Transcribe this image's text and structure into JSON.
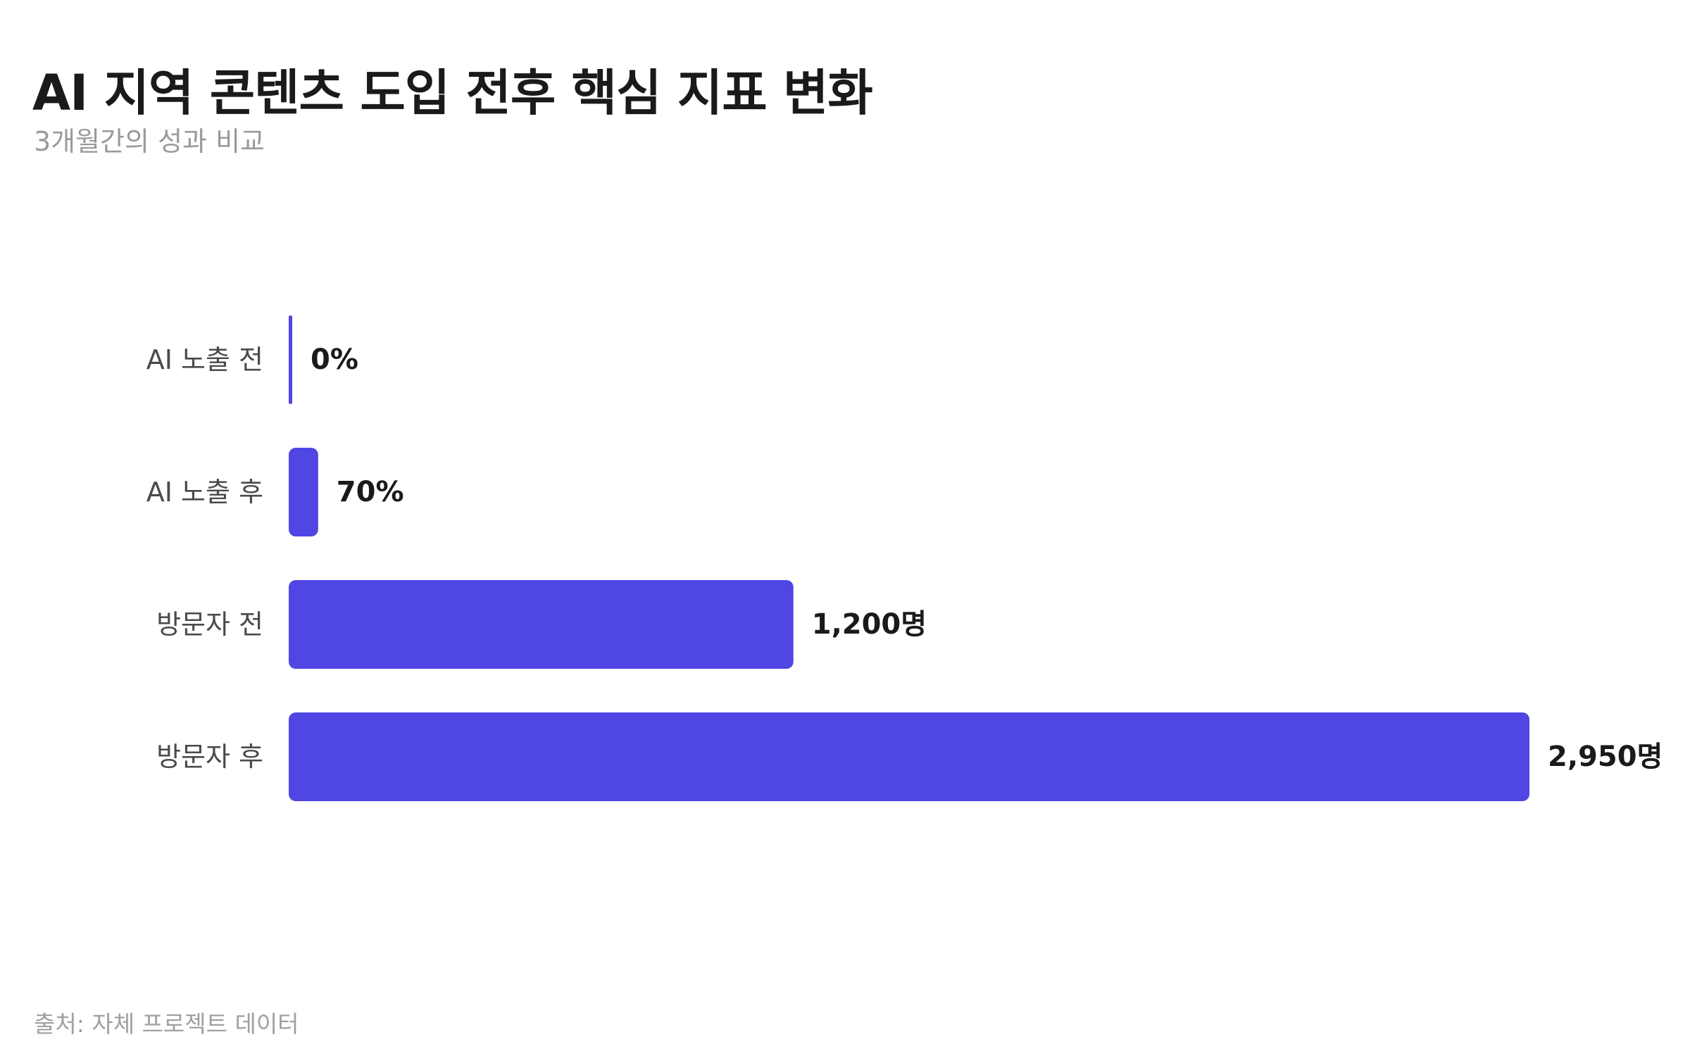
{
  "title": "AI 지역 콘텐츠 도입 전후 핵심 지표 변화",
  "subtitle": "3개월간의 성과 비교",
  "source": "출처: 자체 프로젝트 데이터",
  "colors": {
    "bar": "#5046e4",
    "label": "#4a4a4a",
    "value": "#1a1a1a"
  },
  "chart_data": {
    "type": "bar",
    "orientation": "horizontal",
    "categories": [
      "AI 노출 전",
      "AI 노출 후",
      "방문자 전",
      "방문자 후"
    ],
    "values": [
      0,
      70,
      1200,
      2950
    ],
    "value_labels": [
      "0%",
      "70%",
      "1,200명",
      "2,950명"
    ],
    "xlim": [
      0,
      2950
    ],
    "grid": false,
    "legend": "none",
    "title": "AI 지역 콘텐츠 도입 전후 핵심 지표 변화",
    "xlabel": "",
    "ylabel": ""
  }
}
